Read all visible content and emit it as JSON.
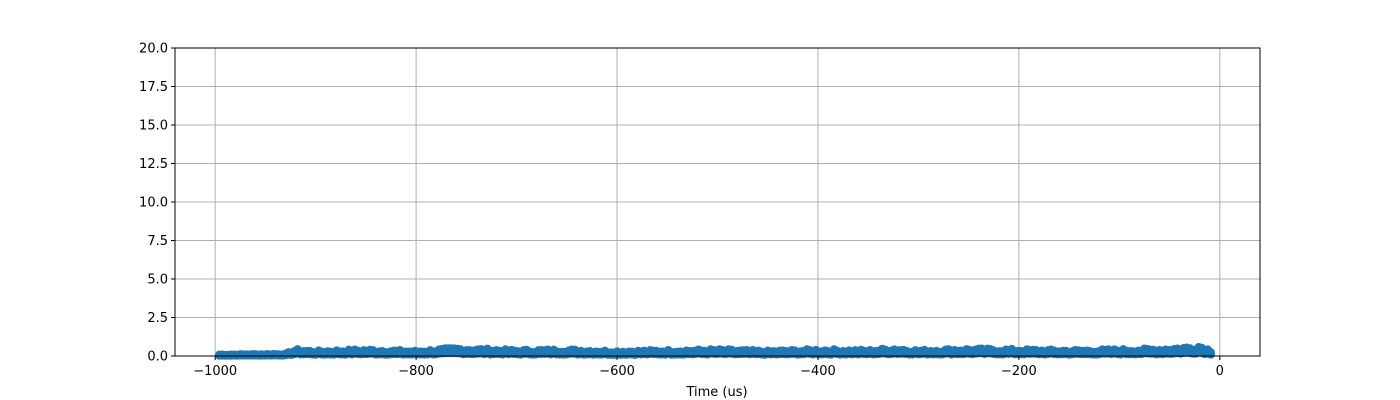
{
  "chart_data": {
    "type": "scatter",
    "title": "",
    "xlabel": "Time (us)",
    "ylabel": "",
    "xlim": [
      -1040,
      40
    ],
    "ylim": [
      0,
      20
    ],
    "grid": true,
    "legend": "none",
    "x_ticks": [
      -1000,
      -800,
      -600,
      -400,
      -200,
      0
    ],
    "x_tick_labels": [
      "−1000",
      "−800",
      "−600",
      "−400",
      "−200",
      "0"
    ],
    "y_ticks": [
      0,
      2.5,
      5,
      7.5,
      10,
      12.5,
      15,
      17.5,
      20
    ],
    "y_tick_labels": [
      "0.0",
      "2.5",
      "5.0",
      "7.5",
      "10.0",
      "12.5",
      "15.0",
      "17.5",
      "20.0"
    ],
    "series": [
      {
        "color": "#1f77b4",
        "x_start": -996,
        "x_end": -9,
        "x_step": 3,
        "y_envelope": [
          [
            -996,
            0.1
          ],
          [
            -930,
            0.15
          ],
          [
            -920,
            0.45
          ],
          [
            -900,
            0.35
          ],
          [
            -850,
            0.45
          ],
          [
            -800,
            0.35
          ],
          [
            -760,
            0.55
          ],
          [
            -700,
            0.4
          ],
          [
            -650,
            0.45
          ],
          [
            -600,
            0.35
          ],
          [
            -550,
            0.4
          ],
          [
            -500,
            0.45
          ],
          [
            -450,
            0.35
          ],
          [
            -400,
            0.45
          ],
          [
            -350,
            0.4
          ],
          [
            -325,
            0.55
          ],
          [
            -300,
            0.4
          ],
          [
            -250,
            0.5
          ],
          [
            -200,
            0.45
          ],
          [
            -150,
            0.4
          ],
          [
            -100,
            0.45
          ],
          [
            -60,
            0.5
          ],
          [
            -30,
            0.65
          ],
          [
            -20,
            0.75
          ],
          [
            -12,
            0.5
          ],
          [
            -9,
            0.4
          ]
        ]
      }
    ]
  }
}
